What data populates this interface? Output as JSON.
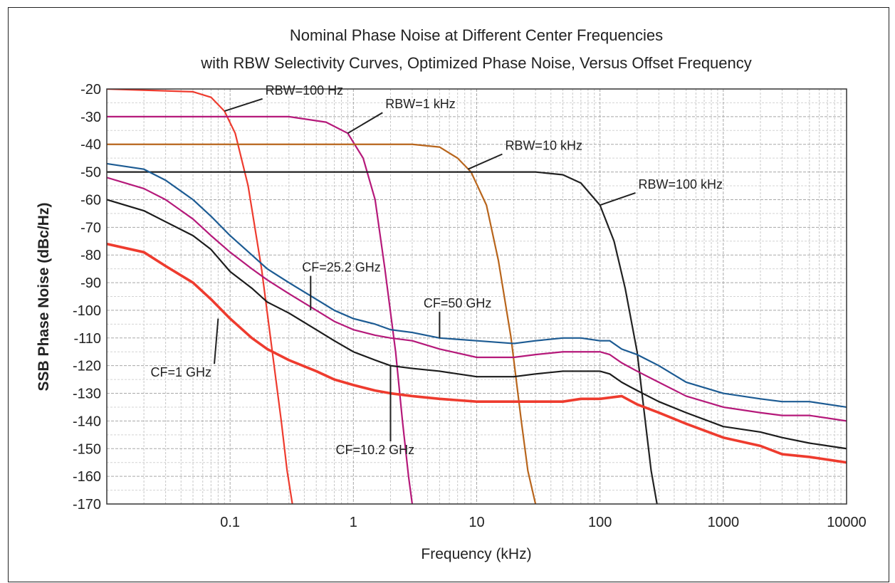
{
  "chart_data": {
    "type": "line",
    "title": "Nominal Phase Noise at Different Center Frequencies",
    "subtitle": "with RBW Selectivity Curves, Optimized Phase Noise, Versus Offset Frequency",
    "xlabel": "Frequency (kHz)",
    "ylabel": "SSB Phase Noise (dBc/Hz)",
    "x_scale": "log",
    "xlim": [
      0.01,
      10000
    ],
    "ylim": [
      -170,
      -20
    ],
    "grid": true,
    "x_ticks": [
      0.1,
      1,
      10,
      100,
      1000,
      10000
    ],
    "x_tick_labels": [
      "0.1",
      "1",
      "10",
      "100",
      "1000",
      "10000"
    ],
    "y_ticks": [
      -20,
      -30,
      -40,
      -50,
      -60,
      -70,
      -80,
      -90,
      -100,
      -110,
      -120,
      -130,
      -140,
      -150,
      -160,
      -170
    ],
    "y_tick_labels": [
      "-20",
      "-30",
      "-40",
      "-50",
      "-60",
      "-70",
      "-80",
      "-90",
      "-100",
      "-110",
      "-120",
      "-130",
      "-140",
      "-150",
      "-160",
      "-170"
    ],
    "series": [
      {
        "name": "RBW=100 Hz",
        "color": "#ee3b2e",
        "points": [
          [
            0.01,
            -20
          ],
          [
            0.05,
            -21
          ],
          [
            0.07,
            -23
          ],
          [
            0.09,
            -28
          ],
          [
            0.11,
            -36
          ],
          [
            0.14,
            -55
          ],
          [
            0.18,
            -85
          ],
          [
            0.22,
            -115
          ],
          [
            0.26,
            -140
          ],
          [
            0.29,
            -158
          ],
          [
            0.32,
            -170
          ]
        ]
      },
      {
        "name": "RBW=1 kHz",
        "color": "#b5197a",
        "points": [
          [
            0.01,
            -30
          ],
          [
            0.3,
            -30
          ],
          [
            0.6,
            -32
          ],
          [
            0.9,
            -36
          ],
          [
            1.2,
            -45
          ],
          [
            1.5,
            -60
          ],
          [
            1.8,
            -85
          ],
          [
            2.2,
            -115
          ],
          [
            2.5,
            -140
          ],
          [
            2.8,
            -160
          ],
          [
            3.0,
            -170
          ]
        ]
      },
      {
        "name": "RBW=10 kHz",
        "color": "#b8651c",
        "points": [
          [
            0.01,
            -40
          ],
          [
            3,
            -40
          ],
          [
            5,
            -41
          ],
          [
            7,
            -45
          ],
          [
            9,
            -50
          ],
          [
            12,
            -62
          ],
          [
            15,
            -82
          ],
          [
            19,
            -110
          ],
          [
            23,
            -140
          ],
          [
            26,
            -158
          ],
          [
            30,
            -170
          ]
        ]
      },
      {
        "name": "RBW=100 kHz",
        "color": "#222222",
        "points": [
          [
            0.01,
            -50
          ],
          [
            30,
            -50
          ],
          [
            50,
            -51
          ],
          [
            70,
            -54
          ],
          [
            100,
            -62
          ],
          [
            130,
            -75
          ],
          [
            160,
            -92
          ],
          [
            200,
            -115
          ],
          [
            230,
            -138
          ],
          [
            260,
            -158
          ],
          [
            290,
            -170
          ]
        ]
      },
      {
        "name": "CF=50 GHz",
        "color": "#1c5b93",
        "points": [
          [
            0.01,
            -47
          ],
          [
            0.02,
            -49
          ],
          [
            0.03,
            -53
          ],
          [
            0.05,
            -60
          ],
          [
            0.07,
            -66
          ],
          [
            0.1,
            -73
          ],
          [
            0.15,
            -80
          ],
          [
            0.2,
            -85
          ],
          [
            0.3,
            -90
          ],
          [
            0.5,
            -96
          ],
          [
            0.7,
            -100
          ],
          [
            1,
            -103
          ],
          [
            1.5,
            -105
          ],
          [
            2,
            -107
          ],
          [
            3,
            -108
          ],
          [
            5,
            -110
          ],
          [
            10,
            -111
          ],
          [
            20,
            -112
          ],
          [
            30,
            -111
          ],
          [
            50,
            -110
          ],
          [
            70,
            -110
          ],
          [
            100,
            -111
          ],
          [
            120,
            -111
          ],
          [
            150,
            -114
          ],
          [
            200,
            -116
          ],
          [
            300,
            -120
          ],
          [
            500,
            -126
          ],
          [
            1000,
            -130
          ],
          [
            2000,
            -132
          ],
          [
            3000,
            -133
          ],
          [
            5000,
            -133
          ],
          [
            10000,
            -135
          ]
        ]
      },
      {
        "name": "CF=25.2 GHz",
        "color": "#b5197a",
        "points": [
          [
            0.01,
            -52
          ],
          [
            0.02,
            -56
          ],
          [
            0.03,
            -60
          ],
          [
            0.05,
            -67
          ],
          [
            0.07,
            -73
          ],
          [
            0.1,
            -79
          ],
          [
            0.15,
            -85
          ],
          [
            0.2,
            -89
          ],
          [
            0.3,
            -94
          ],
          [
            0.5,
            -100
          ],
          [
            0.7,
            -104
          ],
          [
            1,
            -107
          ],
          [
            1.5,
            -109
          ],
          [
            2,
            -110
          ],
          [
            3,
            -111
          ],
          [
            5,
            -114
          ],
          [
            10,
            -117
          ],
          [
            20,
            -117
          ],
          [
            30,
            -116
          ],
          [
            50,
            -115
          ],
          [
            70,
            -115
          ],
          [
            100,
            -115
          ],
          [
            120,
            -116
          ],
          [
            150,
            -119
          ],
          [
            200,
            -122
          ],
          [
            300,
            -126
          ],
          [
            500,
            -131
          ],
          [
            1000,
            -135
          ],
          [
            2000,
            -137
          ],
          [
            3000,
            -138
          ],
          [
            5000,
            -138
          ],
          [
            10000,
            -140
          ]
        ]
      },
      {
        "name": "CF=10.2 GHz",
        "color": "#1c1c1c",
        "points": [
          [
            0.01,
            -60
          ],
          [
            0.02,
            -64
          ],
          [
            0.03,
            -68
          ],
          [
            0.05,
            -73
          ],
          [
            0.07,
            -78
          ],
          [
            0.1,
            -86
          ],
          [
            0.15,
            -92
          ],
          [
            0.2,
            -97
          ],
          [
            0.3,
            -101
          ],
          [
            0.5,
            -107
          ],
          [
            0.7,
            -111
          ],
          [
            1,
            -115
          ],
          [
            1.5,
            -118
          ],
          [
            2,
            -120
          ],
          [
            3,
            -121
          ],
          [
            5,
            -122
          ],
          [
            10,
            -124
          ],
          [
            20,
            -124
          ],
          [
            30,
            -123
          ],
          [
            50,
            -122
          ],
          [
            70,
            -122
          ],
          [
            100,
            -122
          ],
          [
            120,
            -123
          ],
          [
            150,
            -126
          ],
          [
            200,
            -129
          ],
          [
            300,
            -133
          ],
          [
            500,
            -137
          ],
          [
            1000,
            -142
          ],
          [
            2000,
            -144
          ],
          [
            3000,
            -146
          ],
          [
            5000,
            -148
          ],
          [
            10000,
            -150
          ]
        ]
      },
      {
        "name": "CF=1 GHz",
        "color": "#ee3b2e",
        "points": [
          [
            0.01,
            -76
          ],
          [
            0.02,
            -79
          ],
          [
            0.03,
            -84
          ],
          [
            0.05,
            -90
          ],
          [
            0.07,
            -96
          ],
          [
            0.1,
            -103
          ],
          [
            0.15,
            -110
          ],
          [
            0.2,
            -114
          ],
          [
            0.3,
            -118
          ],
          [
            0.5,
            -122
          ],
          [
            0.7,
            -125
          ],
          [
            1,
            -127
          ],
          [
            1.5,
            -129
          ],
          [
            2,
            -130
          ],
          [
            3,
            -131
          ],
          [
            5,
            -132
          ],
          [
            10,
            -133
          ],
          [
            20,
            -133
          ],
          [
            30,
            -133
          ],
          [
            50,
            -133
          ],
          [
            70,
            -132
          ],
          [
            100,
            -132
          ],
          [
            150,
            -131
          ],
          [
            200,
            -134
          ],
          [
            300,
            -137
          ],
          [
            500,
            -141
          ],
          [
            1000,
            -146
          ],
          [
            2000,
            -149
          ],
          [
            3000,
            -152
          ],
          [
            5000,
            -153
          ],
          [
            10000,
            -155
          ]
        ]
      }
    ],
    "annotations": [
      {
        "text": "RBW=100 Hz",
        "x": 0.4,
        "y": -22,
        "arrow_to": [
          0.09,
          -28
        ]
      },
      {
        "text": "RBW=1 kHz",
        "x": 3.5,
        "y": -27,
        "arrow_to": [
          0.9,
          -36
        ]
      },
      {
        "text": "RBW=10 kHz",
        "x": 35,
        "y": -42,
        "arrow_to": [
          8.5,
          -49
        ]
      },
      {
        "text": "RBW=100 kHz",
        "x": 450,
        "y": -56,
        "arrow_to": [
          100,
          -62
        ]
      },
      {
        "text": "CF=25.2 GHz",
        "x": 0.8,
        "y": -86,
        "arrow_to": [
          0.45,
          -100
        ]
      },
      {
        "text": "CF=50 GHz",
        "x": 7,
        "y": -99,
        "arrow_to": [
          5,
          -110
        ]
      },
      {
        "text": "CF=1 GHz",
        "x": 0.04,
        "y": -124,
        "arrow_to": [
          0.08,
          -103
        ]
      },
      {
        "text": "CF=10.2 GHz",
        "x": 1.5,
        "y": -152,
        "arrow_to": [
          2,
          -120
        ]
      }
    ]
  }
}
